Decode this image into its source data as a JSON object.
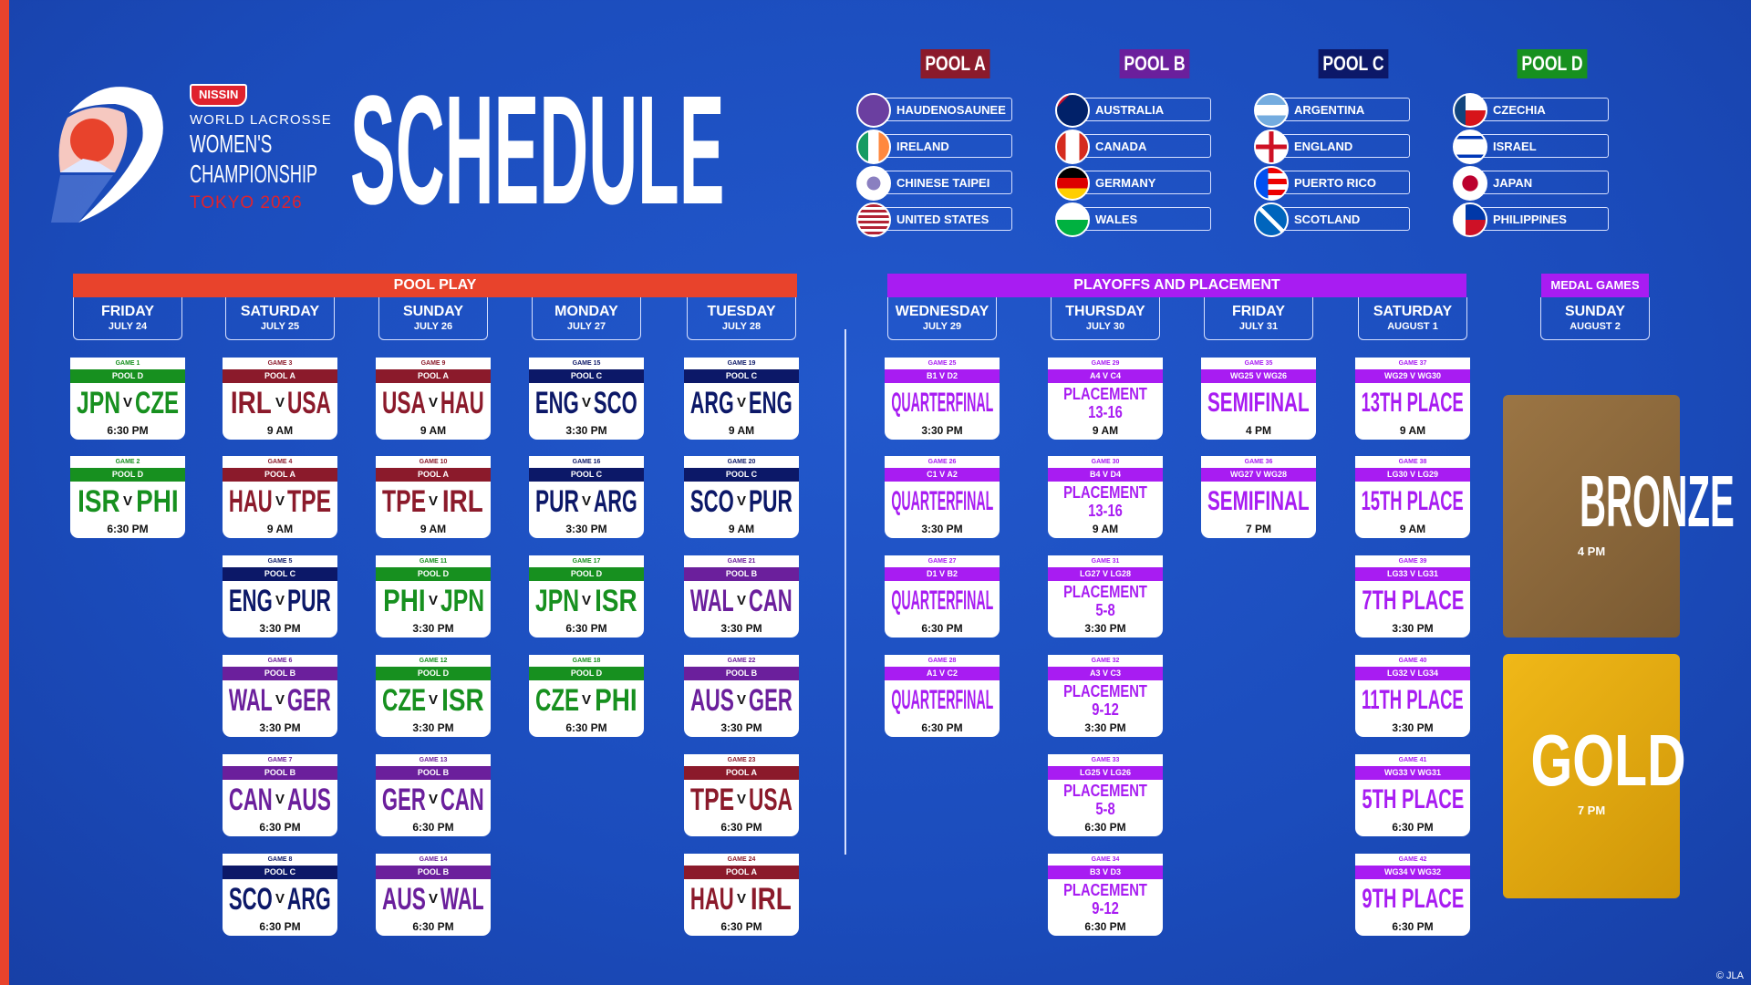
{
  "branding": {
    "sponsor": "NISSIN",
    "org": "WORLD LACROSSE",
    "event_line1": "WOMEN'S",
    "event_line2": "CHAMPIONSHIP",
    "location": "TOKYO 2026",
    "title": "SCHEDULE",
    "copyright": "© JLA"
  },
  "colors": {
    "pool_a": "#8b1a2b",
    "pool_b": "#6b1f9c",
    "pool_c": "#0c1868",
    "pool_d": "#17901f",
    "playoff": "#a81cf2",
    "pool_play_bar": "#e8432c",
    "background": "#1b4cbc",
    "bronze": "#8e6a3e",
    "gold": "#e3a80f"
  },
  "pools": [
    {
      "label": "POOL A",
      "color": "#8b1a2b",
      "teams": [
        {
          "name": "HAUDENOSAUNEE",
          "flag": "haudenosaunee"
        },
        {
          "name": "IRELAND",
          "flag": "ireland"
        },
        {
          "name": "CHINESE TAIPEI",
          "flag": "chinese-taipei"
        },
        {
          "name": "UNITED STATES",
          "flag": "usa"
        }
      ]
    },
    {
      "label": "POOL B",
      "color": "#6b1f9c",
      "teams": [
        {
          "name": "AUSTRALIA",
          "flag": "australia"
        },
        {
          "name": "CANADA",
          "flag": "canada"
        },
        {
          "name": "GERMANY",
          "flag": "germany"
        },
        {
          "name": "WALES",
          "flag": "wales"
        }
      ]
    },
    {
      "label": "POOL C",
      "color": "#0c1868",
      "teams": [
        {
          "name": "ARGENTINA",
          "flag": "argentina"
        },
        {
          "name": "ENGLAND",
          "flag": "england"
        },
        {
          "name": "PUERTO RICO",
          "flag": "puerto-rico"
        },
        {
          "name": "SCOTLAND",
          "flag": "scotland"
        }
      ]
    },
    {
      "label": "POOL D",
      "color": "#17901f",
      "teams": [
        {
          "name": "CZECHIA",
          "flag": "czechia"
        },
        {
          "name": "ISRAEL",
          "flag": "israel"
        },
        {
          "name": "JAPAN",
          "flag": "japan"
        },
        {
          "name": "PHILIPPINES",
          "flag": "philippines"
        }
      ]
    }
  ],
  "sections": {
    "pool_play": "POOL PLAY",
    "playoffs": "PLAYOFFS AND PLACEMENT",
    "medal": "MEDAL GAMES"
  },
  "days": [
    {
      "day": "FRIDAY",
      "date": "JULY 24",
      "games": [
        {
          "game": "GAME 1",
          "pool": "POOL D",
          "pc": "d",
          "home": "JPN",
          "away": "CZE",
          "time": "6:30 PM"
        },
        {
          "game": "GAME 2",
          "pool": "POOL D",
          "pc": "d",
          "home": "ISR",
          "away": "PHI",
          "time": "6:30 PM"
        }
      ]
    },
    {
      "day": "SATURDAY",
      "date": "JULY 25",
      "games": [
        {
          "game": "GAME 3",
          "pool": "POOL A",
          "pc": "a",
          "home": "IRL",
          "away": "USA",
          "time": "9 AM"
        },
        {
          "game": "GAME 4",
          "pool": "POOL A",
          "pc": "a",
          "home": "HAU",
          "away": "TPE",
          "time": "9 AM"
        },
        {
          "game": "GAME 5",
          "pool": "POOL C",
          "pc": "c",
          "home": "ENG",
          "away": "PUR",
          "time": "3:30 PM"
        },
        {
          "game": "GAME 6",
          "pool": "POOL B",
          "pc": "b",
          "home": "WAL",
          "away": "GER",
          "time": "3:30 PM"
        },
        {
          "game": "GAME 7",
          "pool": "POOL B",
          "pc": "b",
          "home": "CAN",
          "away": "AUS",
          "time": "6:30 PM"
        },
        {
          "game": "GAME 8",
          "pool": "POOL C",
          "pc": "c",
          "home": "SCO",
          "away": "ARG",
          "time": "6:30 PM"
        }
      ]
    },
    {
      "day": "SUNDAY",
      "date": "JULY 26",
      "games": [
        {
          "game": "GAME 9",
          "pool": "POOL A",
          "pc": "a",
          "home": "USA",
          "away": "HAU",
          "time": "9 AM"
        },
        {
          "game": "GAME 10",
          "pool": "POOL A",
          "pc": "a",
          "home": "TPE",
          "away": "IRL",
          "time": "9 AM"
        },
        {
          "game": "GAME 11",
          "pool": "POOL D",
          "pc": "d",
          "home": "PHI",
          "away": "JPN",
          "time": "3:30 PM"
        },
        {
          "game": "GAME 12",
          "pool": "POOL D",
          "pc": "d",
          "home": "CZE",
          "away": "ISR",
          "time": "3:30 PM"
        },
        {
          "game": "GAME 13",
          "pool": "POOL B",
          "pc": "b",
          "home": "GER",
          "away": "CAN",
          "time": "6:30 PM"
        },
        {
          "game": "GAME 14",
          "pool": "POOL B",
          "pc": "b",
          "home": "AUS",
          "away": "WAL",
          "time": "6:30 PM"
        }
      ]
    },
    {
      "day": "MONDAY",
      "date": "JULY 27",
      "games": [
        {
          "game": "GAME 15",
          "pool": "POOL C",
          "pc": "c",
          "home": "ENG",
          "away": "SCO",
          "time": "3:30 PM"
        },
        {
          "game": "GAME 16",
          "pool": "POOL C",
          "pc": "c",
          "home": "PUR",
          "away": "ARG",
          "time": "3:30 PM"
        },
        {
          "game": "GAME 17",
          "pool": "POOL D",
          "pc": "d",
          "home": "JPN",
          "away": "ISR",
          "time": "6:30 PM"
        },
        {
          "game": "GAME 18",
          "pool": "POOL D",
          "pc": "d",
          "home": "CZE",
          "away": "PHI",
          "time": "6:30 PM"
        }
      ]
    },
    {
      "day": "TUESDAY",
      "date": "JULY 28",
      "games": [
        {
          "game": "GAME 19",
          "pool": "POOL C",
          "pc": "c",
          "home": "ARG",
          "away": "ENG",
          "time": "9 AM"
        },
        {
          "game": "GAME 20",
          "pool": "POOL C",
          "pc": "c",
          "home": "SCO",
          "away": "PUR",
          "time": "9 AM"
        },
        {
          "game": "GAME 21",
          "pool": "POOL B",
          "pc": "b",
          "home": "WAL",
          "away": "CAN",
          "time": "3:30 PM"
        },
        {
          "game": "GAME 22",
          "pool": "POOL B",
          "pc": "b",
          "home": "AUS",
          "away": "GER",
          "time": "3:30 PM"
        },
        {
          "game": "GAME 23",
          "pool": "POOL A",
          "pc": "a",
          "home": "TPE",
          "away": "USA",
          "time": "6:30 PM"
        },
        {
          "game": "GAME 24",
          "pool": "POOL A",
          "pc": "a",
          "home": "HAU",
          "away": "IRL",
          "time": "6:30 PM"
        }
      ]
    },
    {
      "day": "WEDNESDAY",
      "date": "JULY 29",
      "games": [
        {
          "game": "GAME 25",
          "pool": "B1 V D2",
          "title": "QUARTERFINAL",
          "time": "3:30 PM"
        },
        {
          "game": "GAME 26",
          "pool": "C1 V A2",
          "title": "QUARTERFINAL",
          "time": "3:30 PM"
        },
        {
          "game": "GAME 27",
          "pool": "D1 V B2",
          "title": "QUARTERFINAL",
          "time": "6:30 PM"
        },
        {
          "game": "GAME 28",
          "pool": "A1 V C2",
          "title": "QUARTERFINAL",
          "time": "6:30 PM"
        }
      ]
    },
    {
      "day": "THURSDAY",
      "date": "JULY 30",
      "games": [
        {
          "game": "GAME 29",
          "pool": "A4 V C4",
          "title": "PLACEMENT",
          "sub": "13-16",
          "time": "9 AM"
        },
        {
          "game": "GAME 30",
          "pool": "B4 V D4",
          "title": "PLACEMENT",
          "sub": "13-16",
          "time": "9 AM"
        },
        {
          "game": "GAME 31",
          "pool": "LG27 V LG28",
          "title": "PLACEMENT",
          "sub": "5-8",
          "time": "3:30 PM"
        },
        {
          "game": "GAME 32",
          "pool": "A3 V C3",
          "title": "PLACEMENT",
          "sub": "9-12",
          "time": "3:30 PM"
        },
        {
          "game": "GAME 33",
          "pool": "LG25 V LG26",
          "title": "PLACEMENT",
          "sub": "5-8",
          "time": "6:30 PM"
        },
        {
          "game": "GAME 34",
          "pool": "B3 V D3",
          "title": "PLACEMENT",
          "sub": "9-12",
          "time": "6:30 PM"
        }
      ]
    },
    {
      "day": "FRIDAY",
      "date": "JULY 31",
      "games": [
        {
          "game": "GAME 35",
          "pool": "WG25 V WG26",
          "title": "SEMIFINAL",
          "time": "4 PM"
        },
        {
          "game": "GAME 36",
          "pool": "WG27 V WG28",
          "title": "SEMIFINAL",
          "time": "7 PM"
        }
      ]
    },
    {
      "day": "SATURDAY",
      "date": "AUGUST 1",
      "games": [
        {
          "game": "GAME 37",
          "pool": "WG29 V WG30",
          "title": "13TH PLACE",
          "time": "9 AM"
        },
        {
          "game": "GAME 38",
          "pool": "LG30 V LG29",
          "title": "15TH PLACE",
          "time": "9 AM"
        },
        {
          "game": "GAME 39",
          "pool": "LG33 V LG31",
          "title": "7TH PLACE",
          "time": "3:30 PM"
        },
        {
          "game": "GAME 40",
          "pool": "LG32 V LG34",
          "title": "11TH PLACE",
          "time": "3:30 PM"
        },
        {
          "game": "GAME 41",
          "pool": "WG33 V WG31",
          "title": "5TH PLACE",
          "time": "6:30 PM"
        },
        {
          "game": "GAME 42",
          "pool": "WG34 V WG32",
          "title": "9TH PLACE",
          "time": "6:30 PM"
        }
      ]
    }
  ],
  "medal_day": {
    "day": "SUNDAY",
    "date": "AUGUST 2",
    "games": [
      {
        "name": "BRONZE",
        "time": "4 PM"
      },
      {
        "name": "GOLD",
        "time": "7 PM"
      }
    ]
  },
  "versus": "V"
}
